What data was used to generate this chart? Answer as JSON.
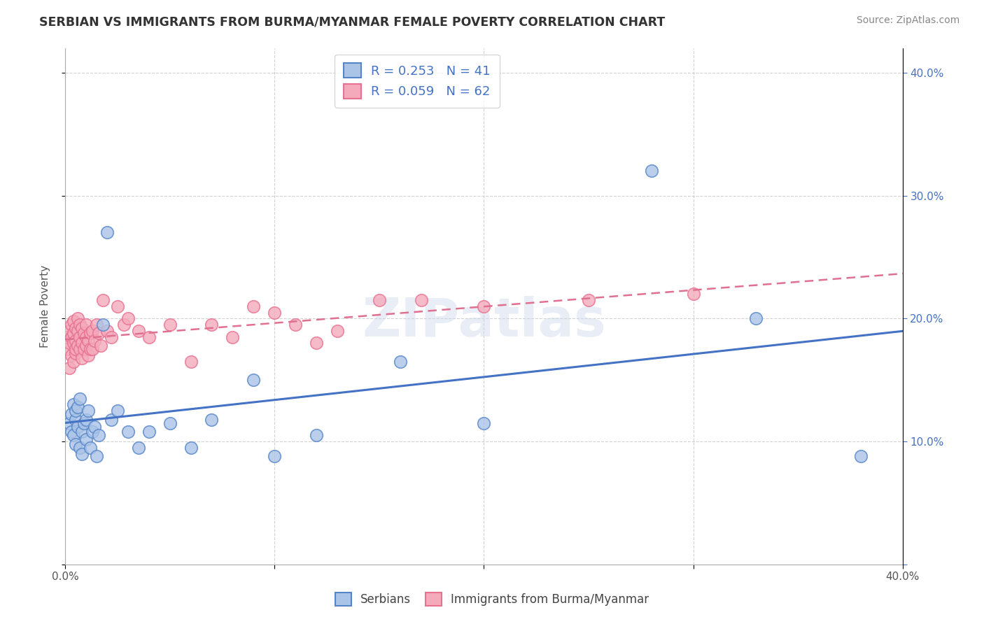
{
  "title": "SERBIAN VS IMMIGRANTS FROM BURMA/MYANMAR FEMALE POVERTY CORRELATION CHART",
  "source": "Source: ZipAtlas.com",
  "ylabel": "Female Poverty",
  "xlim": [
    0.0,
    0.4
  ],
  "ylim": [
    0.0,
    0.42
  ],
  "x_ticks": [
    0.0,
    0.1,
    0.2,
    0.3,
    0.4
  ],
  "x_tick_labels": [
    "0.0%",
    "",
    "",
    "",
    "40.0%"
  ],
  "y_ticks": [
    0.0,
    0.1,
    0.2,
    0.3,
    0.4
  ],
  "y_tick_labels": [
    "",
    "10.0%",
    "20.0%",
    "30.0%",
    "40.0%"
  ],
  "legend_entries": [
    "Serbians",
    "Immigrants from Burma/Myanmar"
  ],
  "R_serbian": 0.253,
  "N_serbian": 41,
  "R_burma": 0.059,
  "N_burma": 62,
  "serbian_color": "#aac4e8",
  "burma_color": "#f4aabb",
  "serbian_edge_color": "#5585c8",
  "burma_edge_color": "#e87090",
  "serbian_line_color": "#4472c4",
  "burma_line_color": "#e07090",
  "title_color": "#333333",
  "source_color": "#888888",
  "watermark": "ZIPatlas",
  "background_color": "#ffffff",
  "grid_color": "#cccccc",
  "right_tick_color": "#4472c4",
  "serbian_x": [
    0.002,
    0.003,
    0.003,
    0.004,
    0.004,
    0.005,
    0.005,
    0.005,
    0.006,
    0.006,
    0.007,
    0.007,
    0.008,
    0.008,
    0.009,
    0.01,
    0.01,
    0.011,
    0.012,
    0.013,
    0.014,
    0.015,
    0.016,
    0.018,
    0.02,
    0.022,
    0.025,
    0.03,
    0.035,
    0.04,
    0.05,
    0.06,
    0.07,
    0.09,
    0.1,
    0.12,
    0.16,
    0.2,
    0.28,
    0.33,
    0.38
  ],
  "serbian_y": [
    0.115,
    0.122,
    0.108,
    0.13,
    0.105,
    0.118,
    0.125,
    0.098,
    0.128,
    0.112,
    0.095,
    0.135,
    0.09,
    0.108,
    0.115,
    0.102,
    0.118,
    0.125,
    0.095,
    0.108,
    0.112,
    0.088,
    0.105,
    0.195,
    0.27,
    0.118,
    0.125,
    0.108,
    0.095,
    0.108,
    0.115,
    0.095,
    0.118,
    0.15,
    0.088,
    0.105,
    0.165,
    0.115,
    0.32,
    0.2,
    0.088
  ],
  "burma_x": [
    0.001,
    0.001,
    0.002,
    0.002,
    0.002,
    0.003,
    0.003,
    0.003,
    0.004,
    0.004,
    0.004,
    0.004,
    0.005,
    0.005,
    0.005,
    0.005,
    0.006,
    0.006,
    0.006,
    0.007,
    0.007,
    0.007,
    0.008,
    0.008,
    0.008,
    0.009,
    0.009,
    0.01,
    0.01,
    0.01,
    0.011,
    0.011,
    0.012,
    0.012,
    0.013,
    0.013,
    0.014,
    0.015,
    0.016,
    0.017,
    0.018,
    0.02,
    0.022,
    0.025,
    0.028,
    0.03,
    0.035,
    0.04,
    0.05,
    0.06,
    0.07,
    0.08,
    0.09,
    0.1,
    0.11,
    0.12,
    0.13,
    0.15,
    0.17,
    0.2,
    0.25,
    0.3
  ],
  "burma_y": [
    0.175,
    0.185,
    0.16,
    0.18,
    0.19,
    0.17,
    0.185,
    0.195,
    0.165,
    0.18,
    0.188,
    0.198,
    0.172,
    0.182,
    0.175,
    0.192,
    0.178,
    0.19,
    0.2,
    0.175,
    0.185,
    0.195,
    0.168,
    0.18,
    0.192,
    0.175,
    0.188,
    0.178,
    0.185,
    0.195,
    0.17,
    0.182,
    0.175,
    0.188,
    0.175,
    0.19,
    0.182,
    0.195,
    0.188,
    0.178,
    0.215,
    0.19,
    0.185,
    0.21,
    0.195,
    0.2,
    0.19,
    0.185,
    0.195,
    0.165,
    0.195,
    0.185,
    0.21,
    0.205,
    0.195,
    0.18,
    0.19,
    0.215,
    0.215,
    0.21,
    0.215,
    0.22
  ]
}
